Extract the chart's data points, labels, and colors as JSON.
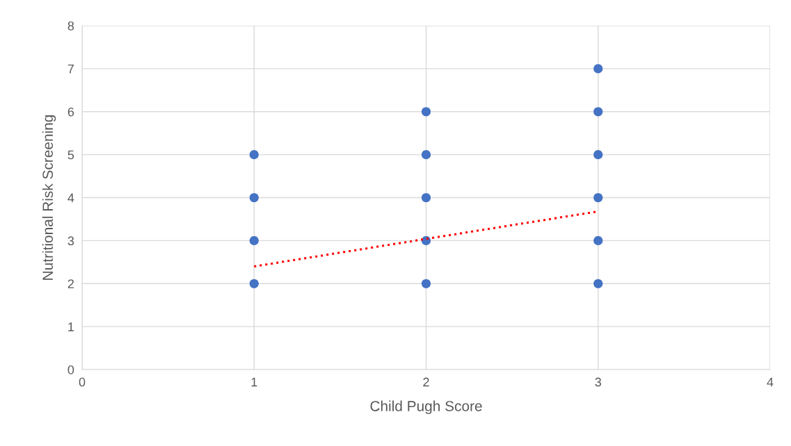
{
  "chart_data": {
    "type": "scatter",
    "xlabel": "Child Pugh Score",
    "ylabel": "Nutritional Risk Screening",
    "series": [
      {
        "color": "#4472c4",
        "marker": "circle",
        "x": [
          1,
          1,
          1,
          1,
          2,
          2,
          2,
          2,
          2,
          3,
          3,
          3,
          3,
          3,
          3
        ],
        "values": [
          2,
          3,
          4,
          5,
          2,
          3,
          4,
          5,
          6,
          2,
          3,
          4,
          5,
          6,
          7
        ]
      },
      {
        "type": "line",
        "color": "#ff0000",
        "marker": "none",
        "line_style": "dotted",
        "x": [
          1,
          3
        ],
        "values": [
          2.4,
          3.68
        ]
      }
    ],
    "xlim": [
      0,
      4
    ],
    "xticks": [
      0,
      1,
      2,
      3,
      4
    ],
    "ylim": [
      0,
      8
    ],
    "yticks": [
      0,
      1,
      2,
      3,
      4,
      5,
      6,
      7,
      8
    ],
    "grid": true,
    "legend": false
  }
}
